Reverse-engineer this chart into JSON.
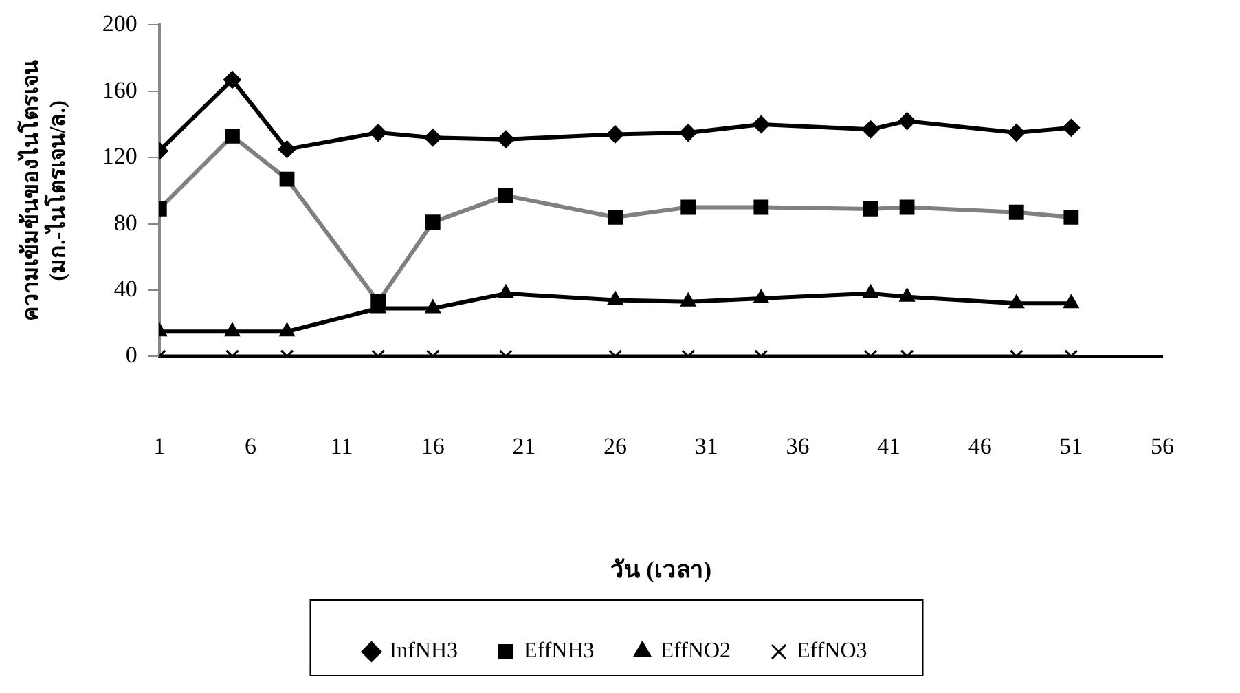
{
  "chart_data": {
    "type": "line",
    "xlabel": "วัน (เวลา)",
    "ylabel": "ความเข้มข้นของไนโตรเจน\n(มก.-ไนโตรเจน/ล.)",
    "x": [
      1,
      5,
      8,
      13,
      16,
      20,
      26,
      30,
      34,
      40,
      42,
      48,
      51
    ],
    "xlim": [
      1,
      56
    ],
    "xticks": [
      1,
      6,
      11,
      16,
      21,
      26,
      31,
      36,
      41,
      46,
      51,
      56
    ],
    "ylim": [
      0,
      200
    ],
    "yticks": [
      0,
      40,
      80,
      120,
      160,
      200
    ],
    "grid": false,
    "legend": "bottom",
    "line_style": "solid",
    "series": [
      {
        "name": "InfNH3",
        "color": "#000000",
        "marker": "diamond",
        "values": [
          124,
          167,
          125,
          135,
          132,
          131,
          134,
          135,
          140,
          137,
          142,
          135,
          138
        ]
      },
      {
        "name": "EffNH3",
        "color": "#808080",
        "marker": "square",
        "values": [
          89,
          133,
          107,
          33,
          81,
          97,
          84,
          90,
          90,
          89,
          90,
          87,
          84
        ]
      },
      {
        "name": "EffNO2",
        "color": "#000000",
        "marker": "triangle",
        "values": [
          15,
          15,
          15,
          29,
          29,
          38,
          34,
          33,
          35,
          38,
          36,
          32,
          32
        ]
      },
      {
        "name": "EffNO3",
        "color": "#000000",
        "marker": "cross",
        "values": [
          0,
          0,
          0,
          0,
          0,
          0,
          0,
          0,
          0,
          0,
          0,
          0,
          0
        ]
      }
    ]
  }
}
